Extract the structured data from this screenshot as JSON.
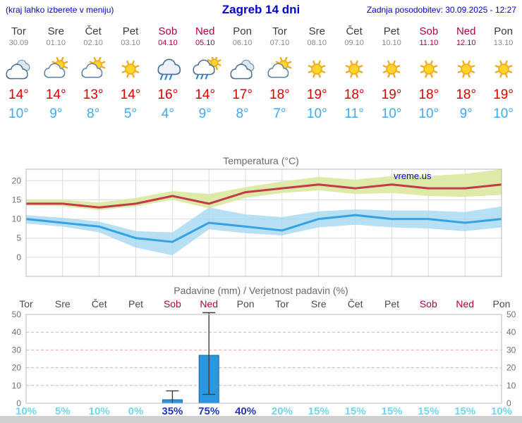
{
  "header": {
    "left_note": "(kraj lahko izberete v meniju)",
    "title": "Zagreb 14 dni",
    "last_update": "Zadnja posodobitev: 30.09.2025 - 12:27"
  },
  "colors": {
    "link_blue": "#0000cc",
    "weekend_red": "#b00040",
    "tmax_red": "#dd0000",
    "tmin_blue": "#3fa9f5",
    "line_red": "#c43a4a",
    "line_blue": "#35a2e5",
    "band_green": "#dce9a2",
    "band_blue": "#a5d8f2",
    "bar_blue": "#2b97e0",
    "bar_edge": "#1565a8",
    "grid_pink": "#eba8a8",
    "prob_light": "#6fd6f0",
    "prob_strong": "#2038b8"
  },
  "days": [
    {
      "name": "Tor",
      "date": "30.09",
      "weekend": false,
      "icon": "cloudy",
      "tmax": "14°",
      "tmin": "10°"
    },
    {
      "name": "Sre",
      "date": "01.10",
      "weekend": false,
      "icon": "partly",
      "tmax": "14°",
      "tmin": "9°"
    },
    {
      "name": "Čet",
      "date": "02.10",
      "weekend": false,
      "icon": "partly",
      "tmax": "13°",
      "tmin": "8°"
    },
    {
      "name": "Pet",
      "date": "03.10",
      "weekend": false,
      "icon": "sunny",
      "tmax": "14°",
      "tmin": "5°"
    },
    {
      "name": "Sob",
      "date": "04.10",
      "weekend": true,
      "icon": "rain",
      "tmax": "16°",
      "tmin": "4°"
    },
    {
      "name": "Ned",
      "date": "05.10",
      "weekend": true,
      "icon": "rain-sun",
      "tmax": "14°",
      "tmin": "9°"
    },
    {
      "name": "Pon",
      "date": "06.10",
      "weekend": false,
      "icon": "cloudy",
      "tmax": "17°",
      "tmin": "8°"
    },
    {
      "name": "Tor",
      "date": "07.10",
      "weekend": false,
      "icon": "partly",
      "tmax": "18°",
      "tmin": "7°"
    },
    {
      "name": "Sre",
      "date": "08.10",
      "weekend": false,
      "icon": "sunny",
      "tmax": "19°",
      "tmin": "10°"
    },
    {
      "name": "Čet",
      "date": "09.10",
      "weekend": false,
      "icon": "sunny",
      "tmax": "18°",
      "tmin": "11°"
    },
    {
      "name": "Pet",
      "date": "10.10",
      "weekend": false,
      "icon": "sunny",
      "tmax": "19°",
      "tmin": "10°"
    },
    {
      "name": "Sob",
      "date": "11.10",
      "weekend": true,
      "icon": "sunny",
      "tmax": "18°",
      "tmin": "10°"
    },
    {
      "name": "Ned",
      "date": "12.10",
      "weekend": true,
      "icon": "sunny",
      "tmax": "18°",
      "tmin": "9°"
    },
    {
      "name": "Pon",
      "date": "13.10",
      "weekend": false,
      "icon": "sunny",
      "tmax": "19°",
      "tmin": "10°"
    }
  ],
  "chart_data": [
    {
      "type": "area",
      "title": "Temperatura (°C)",
      "watermark": "vreme.us",
      "x_labels": [
        "Tor 30.09",
        "Sre 01.10",
        "Čet 02.10",
        "Pet 03.10",
        "Sob 04.10",
        "Ned 05.10",
        "Pon 06.10",
        "Tor 07.10",
        "Sre 08.10",
        "Čet 09.10",
        "Pet 10.10",
        "Sob 11.10",
        "Ned 12.10",
        "Pon 13.10"
      ],
      "ylim": [
        -5,
        23
      ],
      "yticks": [
        0,
        5,
        10,
        15,
        20
      ],
      "grid": true,
      "series": [
        {
          "name": "t_max",
          "values": [
            14,
            14,
            13,
            14,
            16,
            14,
            17,
            18,
            19,
            18,
            19,
            18,
            18,
            19
          ]
        },
        {
          "name": "t_min",
          "values": [
            10,
            9,
            8,
            5,
            4,
            9,
            8,
            7,
            10,
            11,
            10,
            10,
            9,
            10
          ]
        },
        {
          "name": "t_max_range_upper",
          "values": [
            15,
            15,
            14.3,
            15.5,
            17.3,
            16.5,
            18.3,
            19.8,
            21,
            20.3,
            21.2,
            21.2,
            21.8,
            23
          ]
        },
        {
          "name": "t_max_range_lower",
          "values": [
            13.5,
            13.3,
            12.3,
            13.3,
            15,
            12.8,
            15.5,
            16.8,
            17.5,
            16.5,
            16.8,
            16,
            15.8,
            16.3
          ]
        },
        {
          "name": "t_min_range_upper",
          "values": [
            11,
            10.3,
            9.3,
            6.8,
            6.5,
            13,
            11.2,
            10.5,
            12,
            12.5,
            12.2,
            12.2,
            11.8,
            13.3
          ]
        },
        {
          "name": "t_min_range_lower",
          "values": [
            8.8,
            8,
            6.5,
            2.5,
            0.5,
            7.3,
            6.3,
            5.7,
            7.8,
            8.5,
            7.8,
            7.5,
            6.8,
            7.8
          ]
        }
      ]
    },
    {
      "type": "bar",
      "title": "Padavine (mm) / Verjetnost padavin (%)",
      "categories": [
        "Tor",
        "Sre",
        "Čet",
        "Pet",
        "Sob",
        "Ned",
        "Pon",
        "Tor",
        "Sre",
        "Čet",
        "Pet",
        "Sob",
        "Ned",
        "Pon"
      ],
      "weekend": [
        false,
        false,
        false,
        false,
        true,
        true,
        false,
        false,
        false,
        false,
        false,
        true,
        true,
        false
      ],
      "values": [
        0,
        0,
        0,
        0,
        2,
        27,
        0,
        0,
        0,
        0,
        0,
        0,
        0,
        0
      ],
      "whisker_low": [
        0,
        0,
        0,
        0,
        0,
        5,
        0,
        0,
        0,
        0,
        0,
        0,
        0,
        0
      ],
      "whisker_high": [
        0,
        0,
        0,
        0,
        7,
        51,
        0,
        0,
        0,
        0,
        0,
        0,
        0,
        0
      ],
      "probabilities": [
        "10%",
        "5%",
        "10%",
        "0%",
        "35%",
        "75%",
        "40%",
        "20%",
        "15%",
        "15%",
        "15%",
        "15%",
        "15%",
        "10%"
      ],
      "prob_strong": [
        false,
        false,
        false,
        false,
        true,
        true,
        true,
        false,
        false,
        false,
        false,
        false,
        false,
        false
      ],
      "ylim": [
        0,
        50
      ],
      "yticks": [
        0,
        10,
        20,
        30,
        40,
        50
      ]
    }
  ]
}
